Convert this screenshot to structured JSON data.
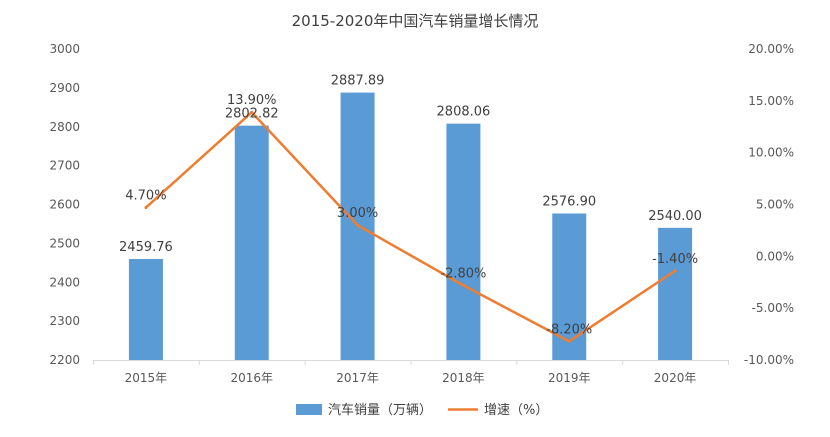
{
  "chart_data": {
    "type": "bar",
    "title": "2015-2020年中国汽车销量增长情况",
    "categories": [
      "2015年",
      "2016年",
      "2017年",
      "2018年",
      "2019年",
      "2020年"
    ],
    "series": [
      {
        "name": "汽车销量（万辆）",
        "type": "bar",
        "axis": "left",
        "values": [
          2459.76,
          2802.82,
          2887.89,
          2808.06,
          2576.9,
          2540.0
        ],
        "labels": [
          "2459.76",
          "2802.82",
          "2887.89",
          "2808.06",
          "2576.90",
          "2540.00"
        ],
        "color": "#5b9bd5"
      },
      {
        "name": "增速（%）",
        "type": "line",
        "axis": "right",
        "values": [
          4.7,
          13.9,
          3.0,
          -2.8,
          -8.2,
          -1.4
        ],
        "labels": [
          "4.70%",
          "13.90%",
          "3.00%",
          "-2.80%",
          "-8.20%",
          "-1.40%"
        ],
        "color": "#ed7d31"
      }
    ],
    "y_left": {
      "min": 2200,
      "max": 3000,
      "ticks": [
        "3000",
        "2900",
        "2800",
        "2700",
        "2600",
        "2500",
        "2400",
        "2300",
        "2200"
      ]
    },
    "y_right": {
      "min": -10,
      "max": 20,
      "ticks": [
        "20.00%",
        "15.00%",
        "10.00%",
        "5.00%",
        "0.00%",
        "-5.00%",
        "-10.00%"
      ]
    },
    "grid": false,
    "legend_position": "bottom"
  }
}
